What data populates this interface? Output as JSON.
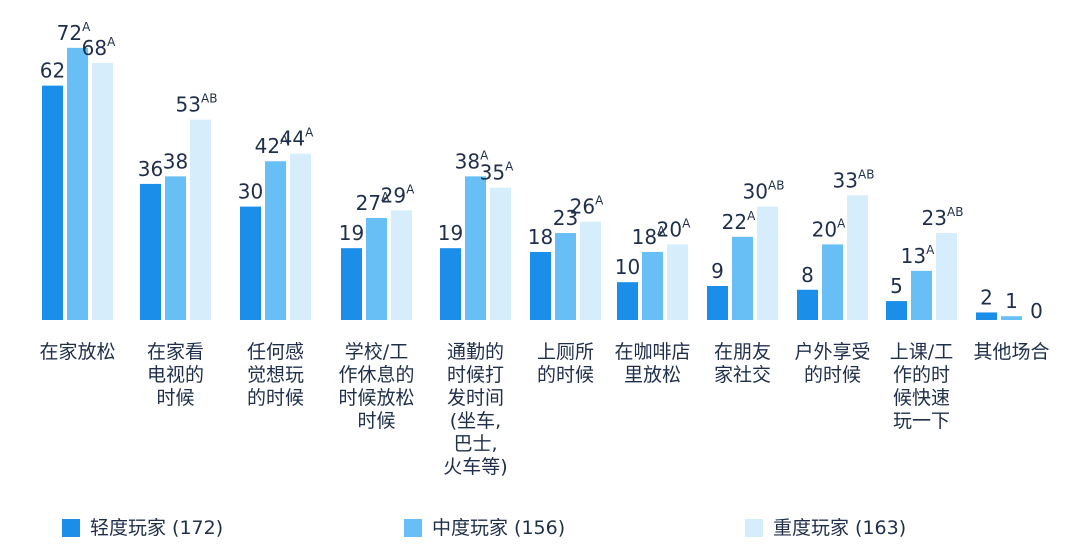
{
  "chart_data": {
    "type": "bar",
    "title": "",
    "xlabel": "",
    "ylabel": "",
    "ylim": [
      0,
      75
    ],
    "grid": false,
    "legend_position": "bottom",
    "categories": [
      [
        "在家放松"
      ],
      [
        "在家看",
        "电视的",
        "时候"
      ],
      [
        "任何感",
        "觉想玩",
        "的时候"
      ],
      [
        "学校/工",
        "作休息的",
        "时候放松",
        "时候"
      ],
      [
        "通勤的",
        "时候打",
        "发时间",
        "(坐车,",
        "巴士,",
        "火车等)"
      ],
      [
        "上厕所",
        "的时候"
      ],
      [
        "在咖啡店",
        "里放松"
      ],
      [
        "在朋友",
        "家社交"
      ],
      [
        "户外享受",
        "的时候"
      ],
      [
        "上课/工",
        "作的时",
        "候快速",
        "玩一下"
      ],
      [
        "其他场合"
      ]
    ],
    "series": [
      {
        "name": "轻度玩家 (172)",
        "color": "#1a8ee8",
        "values": [
          62,
          36,
          30,
          19,
          19,
          18,
          10,
          9,
          8,
          5,
          2
        ],
        "sig": [
          "",
          "",
          "",
          "",
          "",
          "",
          "",
          "",
          "",
          "",
          ""
        ]
      },
      {
        "name": "中度玩家 (156)",
        "color": "#68bff5",
        "values": [
          72,
          38,
          42,
          27,
          38,
          23,
          18,
          22,
          20,
          13,
          1
        ],
        "sig": [
          "A",
          "",
          "A",
          "A",
          "A",
          "",
          "A",
          "A",
          "A",
          "A",
          ""
        ]
      },
      {
        "name": "重度玩家 (163)",
        "color": "#d6eefb",
        "values": [
          68,
          53,
          44,
          29,
          35,
          26,
          20,
          30,
          33,
          23,
          0
        ],
        "sig": [
          "A",
          "AB",
          "A",
          "A",
          "A",
          "A",
          "A",
          "AB",
          "AB",
          "AB",
          ""
        ]
      }
    ],
    "highlight": {
      "series": 2,
      "category": 1,
      "color": "#e8833a"
    }
  }
}
